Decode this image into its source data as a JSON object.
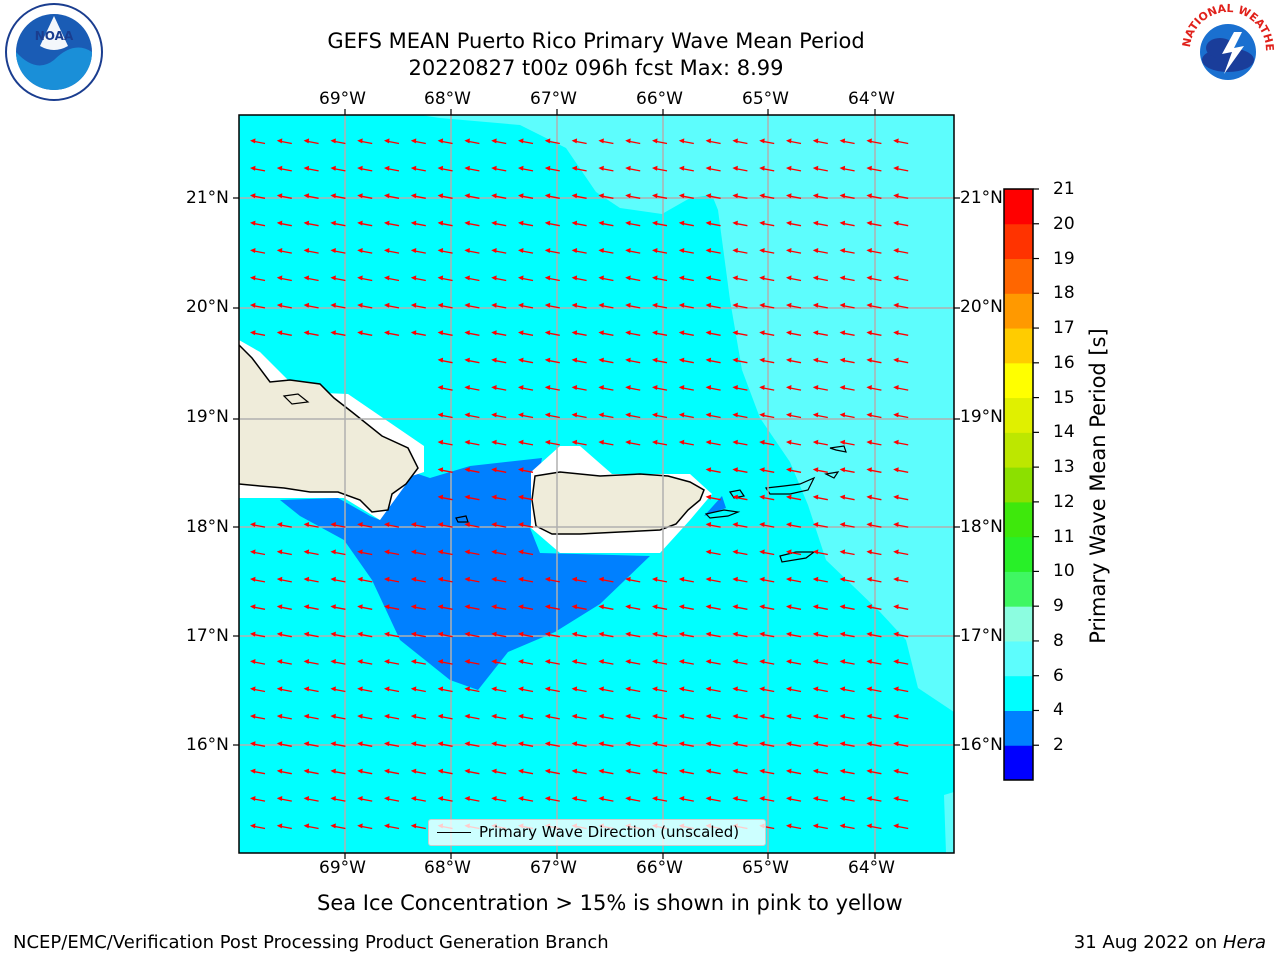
{
  "title_line1": "GEFS MEAN Puerto Rico Primary Wave Mean Period",
  "title_line2": "20220827 t00z 096h fcst   Max: 8.99",
  "map": {
    "lon_labels": [
      "69°W",
      "68°W",
      "67°W",
      "66°W",
      "65°W",
      "64°W"
    ],
    "lat_labels": [
      "21°N",
      "20°N",
      "19°N",
      "18°N",
      "17°N",
      "16°N"
    ],
    "ocean_color": "#00ffff",
    "light_band_color": "#5dfdfd",
    "low_period_color": "#0080ff",
    "land_color": "#efecda",
    "arrow_color": "#ff0000",
    "grid_color": "#b0b0b0",
    "legend_label": "Primary Wave Direction (unscaled)"
  },
  "colorbar": {
    "title": "Primary Wave Mean Period [s]",
    "labels": [
      "21",
      "20",
      "19",
      "18",
      "17",
      "16",
      "15",
      "14",
      "13",
      "12",
      "11",
      "10",
      "9",
      "8",
      "6",
      "4",
      "2"
    ],
    "colors_bottom_to_top": [
      "#0000ff",
      "#0080ff",
      "#00ffff",
      "#5dfdfd",
      "#8cfde0",
      "#3ff762",
      "#28f028",
      "#3ee80c",
      "#8ce000",
      "#bde700",
      "#e0f000",
      "#ffff00",
      "#ffcc00",
      "#ff9900",
      "#ff6600",
      "#ff3300",
      "#ff0000"
    ]
  },
  "note": "Sea Ice Concentration > 15% is shown in pink to yellow",
  "footer_left": "NCEP/EMC/Verification Post Processing Product Generation Branch",
  "footer_right_prefix": "31 Aug 2022 on ",
  "footer_right_host": "Hera",
  "logos": {
    "noaa_text": "NOAA",
    "nws_text": "NATIONAL WEATHER SERVICE"
  }
}
